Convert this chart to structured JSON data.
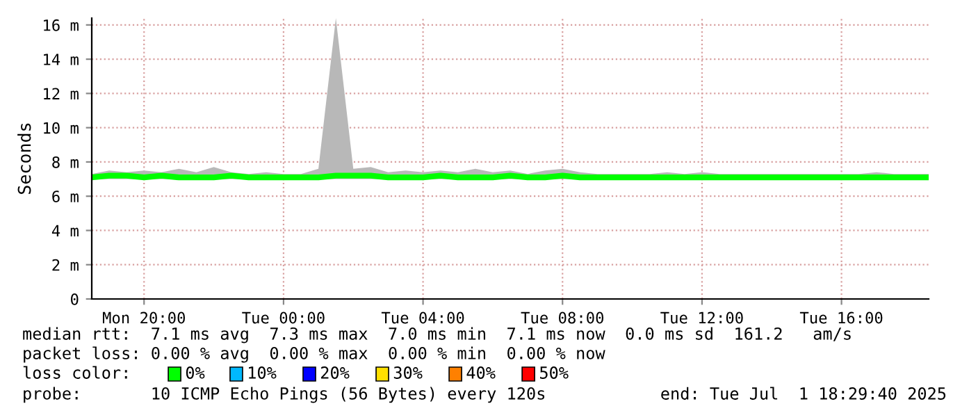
{
  "chart_data": {
    "type": "line",
    "ylabel": "Seconds",
    "x": [
      "2025-06-30T18:30",
      "2025-06-30T19:00",
      "2025-06-30T19:30",
      "2025-06-30T20:00",
      "2025-06-30T20:30",
      "2025-06-30T21:00",
      "2025-06-30T21:30",
      "2025-06-30T22:00",
      "2025-06-30T22:30",
      "2025-06-30T23:00",
      "2025-06-30T23:30",
      "2025-07-01T00:00",
      "2025-07-01T00:30",
      "2025-07-01T01:00",
      "2025-07-01T01:30",
      "2025-07-01T02:00",
      "2025-07-01T02:30",
      "2025-07-01T03:00",
      "2025-07-01T03:30",
      "2025-07-01T04:00",
      "2025-07-01T04:30",
      "2025-07-01T05:00",
      "2025-07-01T05:30",
      "2025-07-01T06:00",
      "2025-07-01T06:30",
      "2025-07-01T07:00",
      "2025-07-01T07:30",
      "2025-07-01T08:00",
      "2025-07-01T08:30",
      "2025-07-01T09:00",
      "2025-07-01T09:30",
      "2025-07-01T10:00",
      "2025-07-01T10:30",
      "2025-07-01T11:00",
      "2025-07-01T11:30",
      "2025-07-01T12:00",
      "2025-07-01T12:30",
      "2025-07-01T13:00",
      "2025-07-01T13:30",
      "2025-07-01T14:00",
      "2025-07-01T14:30",
      "2025-07-01T15:00",
      "2025-07-01T15:30",
      "2025-07-01T16:00",
      "2025-07-01T16:30",
      "2025-07-01T17:00",
      "2025-07-01T17:30",
      "2025-07-01T18:00",
      "2025-07-01T18:30"
    ],
    "series": [
      {
        "color": "#00ff00",
        "values": [
          7.1,
          7.2,
          7.2,
          7.1,
          7.2,
          7.1,
          7.1,
          7.1,
          7.2,
          7.1,
          7.1,
          7.1,
          7.1,
          7.1,
          7.2,
          7.2,
          7.2,
          7.1,
          7.1,
          7.1,
          7.2,
          7.1,
          7.1,
          7.1,
          7.2,
          7.1,
          7.1,
          7.2,
          7.1,
          7.1,
          7.1,
          7.1,
          7.1,
          7.1,
          7.1,
          7.1,
          7.1,
          7.1,
          7.1,
          7.1,
          7.1,
          7.1,
          7.1,
          7.1,
          7.1,
          7.1,
          7.1,
          7.1,
          7.1
        ],
        "lower": [
          7.0,
          7.0,
          7.0,
          7.0,
          7.0,
          7.0,
          7.0,
          7.0,
          7.0,
          7.0,
          7.0,
          7.0,
          7.0,
          7.0,
          7.0,
          7.0,
          7.0,
          7.0,
          7.0,
          7.0,
          7.0,
          7.0,
          7.0,
          7.0,
          7.0,
          7.0,
          7.0,
          7.0,
          7.0,
          7.0,
          7.0,
          7.0,
          7.0,
          7.0,
          7.0,
          7.0,
          7.0,
          7.0,
          7.0,
          7.0,
          7.0,
          7.0,
          7.0,
          7.0,
          7.0,
          7.0,
          7.0,
          7.0,
          7.0
        ],
        "upper": [
          7.3,
          7.5,
          7.4,
          7.5,
          7.4,
          7.6,
          7.4,
          7.7,
          7.4,
          7.3,
          7.4,
          7.3,
          7.3,
          7.6,
          16.4,
          7.6,
          7.7,
          7.4,
          7.5,
          7.4,
          7.5,
          7.4,
          7.6,
          7.4,
          7.5,
          7.3,
          7.5,
          7.6,
          7.4,
          7.3,
          7.3,
          7.3,
          7.3,
          7.4,
          7.3,
          7.4,
          7.3,
          7.3,
          7.3,
          7.3,
          7.3,
          7.3,
          7.3,
          7.3,
          7.3,
          7.4,
          7.3,
          7.3,
          7.3
        ]
      }
    ],
    "xlim": [
      "2025-06-30T18:30",
      "2025-07-01T18:30"
    ],
    "xticks": [
      {
        "value": "2025-06-30T20:00",
        "label": "Mon 20:00"
      },
      {
        "value": "2025-07-01T00:00",
        "label": "Tue 00:00"
      },
      {
        "value": "2025-07-01T04:00",
        "label": "Tue 04:00"
      },
      {
        "value": "2025-07-01T08:00",
        "label": "Tue 08:00"
      },
      {
        "value": "2025-07-01T12:00",
        "label": "Tue 12:00"
      },
      {
        "value": "2025-07-01T16:00",
        "label": "Tue 16:00"
      }
    ],
    "ylim": [
      0,
      16.4
    ],
    "yticks": [
      0,
      {
        "value": 2,
        "label": "2 m"
      },
      {
        "value": 4,
        "label": "4 m"
      },
      {
        "value": 6,
        "label": "6 m"
      },
      {
        "value": 8,
        "label": "8 m"
      },
      {
        "value": 10,
        "label": "10 m"
      },
      {
        "value": 12,
        "label": "12 m"
      },
      {
        "value": 14,
        "label": "14 m"
      },
      {
        "value": 16,
        "label": "16 m"
      }
    ],
    "grid": true,
    "line_style": "solid",
    "marker": "none",
    "annotations": [
      "median rtt:  7.1 ms avg  7.3 ms max  7.0 ms min  7.1 ms now  0.0 ms sd  161.2   am/s",
      "packet loss: 0.00 % avg  0.00 % max  0.00 % min  0.00 % now",
      "loss color:",
      "0%",
      "10%",
      "20%",
      "30%",
      "40%",
      "50%",
      "probe:       10 ICMP Echo Pings (56 Bytes) every 120s",
      "end: Tue Jul  1 18:29:40 2025"
    ]
  }
}
